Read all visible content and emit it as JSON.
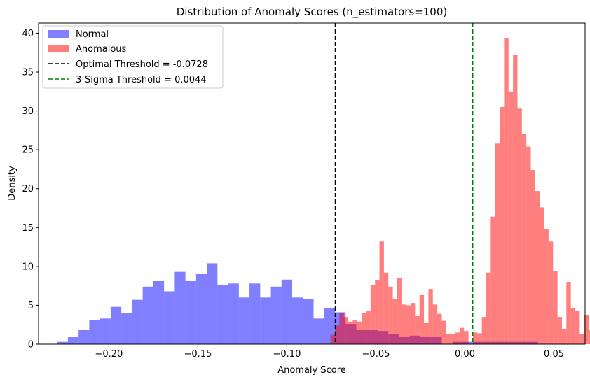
{
  "chart_data": {
    "type": "histogram",
    "title": "Distribution of Anomaly Scores (n_estimators=100)",
    "xlabel": "Anomaly Score",
    "ylabel": "Density",
    "xlim": [
      -0.2395,
      0.0675
    ],
    "ylim": [
      0,
      41.3
    ],
    "x_ticks": [
      -0.2,
      -0.15,
      -0.1,
      -0.05,
      0.0,
      0.05
    ],
    "x_tick_labels": [
      "−0.20",
      "−0.15",
      "−0.10",
      "−0.05",
      "0.00",
      "0.05"
    ],
    "y_ticks": [
      0,
      5,
      10,
      15,
      20,
      25,
      30,
      35,
      40
    ],
    "y_tick_labels": [
      "0",
      "5",
      "10",
      "15",
      "20",
      "25",
      "30",
      "35",
      "40"
    ],
    "grid": false,
    "legend_position": "top-left",
    "series": [
      {
        "name": "Normal",
        "color": "#0000ff",
        "opacity": 0.5,
        "bin_start": -0.229,
        "bin_width": 0.006,
        "values": [
          0.3,
          0.9,
          1.8,
          3.1,
          3.3,
          4.8,
          4.0,
          5.7,
          7.4,
          8.1,
          6.8,
          9.3,
          8.1,
          9.0,
          10.4,
          7.6,
          7.8,
          6.0,
          7.8,
          6.0,
          7.4,
          8.3,
          6.0,
          5.8,
          3.3,
          4.6,
          4.1,
          2.6,
          1.8,
          1.8,
          1.7,
          1.3,
          0.9,
          1.1,
          0.9,
          0.9,
          0,
          0.3,
          0.3,
          0.3,
          0.3,
          0.3,
          0.3,
          0.3,
          0.3,
          0,
          0,
          0,
          0,
          0,
          0.2
        ]
      },
      {
        "name": "Anomalous",
        "color": "#ff0000",
        "opacity": 0.5,
        "bin_start": -0.0755,
        "bin_width": 0.0025,
        "values": [
          1.2,
          2.4,
          4.0,
          3.5,
          2.9,
          3.1,
          2.9,
          4.0,
          4.3,
          7.6,
          8.2,
          13.2,
          9.2,
          7.4,
          5.8,
          8.5,
          5.1,
          5.0,
          5.3,
          3.6,
          6.3,
          2.7,
          7.1,
          5.1,
          3.9,
          3.0,
          1.3,
          1.3,
          1.5,
          2.1,
          1.7,
          0,
          1.5,
          1.4,
          3.5,
          9.2,
          16.4,
          25.8,
          30.5,
          39.4,
          32.5,
          37.2,
          30.3,
          27.0,
          25.4,
          22.4,
          19.7,
          17.6,
          14.8,
          13.2,
          9.4,
          3.5,
          1.9,
          8.0,
          4.6,
          4.3,
          1.3,
          3.7,
          1.8,
          0,
          0,
          0.8,
          0.8,
          0,
          0.3
        ]
      }
    ],
    "reference_lines": [
      {
        "name": "Optimal Threshold = -0.0728",
        "x": -0.0728,
        "color": "#000000",
        "style": "dashed"
      },
      {
        "name": "3-Sigma Threshold = 0.0044",
        "x": 0.0044,
        "color": "#008000",
        "style": "dashed"
      }
    ]
  }
}
